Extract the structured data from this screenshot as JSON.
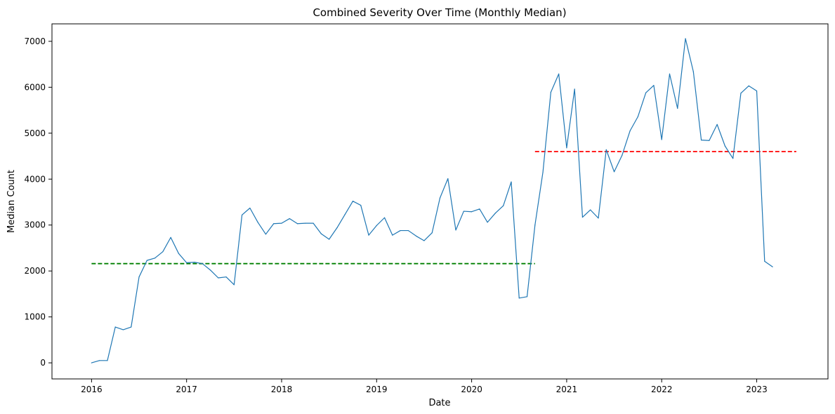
{
  "chart_data": {
    "type": "line",
    "title": "Combined Severity Over Time (Monthly Median)",
    "xlabel": "Date",
    "ylabel": "Median Count",
    "x_ticks": [
      "2016",
      "2017",
      "2018",
      "2019",
      "2020",
      "2021",
      "2022",
      "2023"
    ],
    "y_ticks": [
      0,
      1000,
      2000,
      3000,
      4000,
      5000,
      6000,
      7000
    ],
    "xlim": [
      "2015-08",
      "2023-10"
    ],
    "ylim": [
      -350,
      7380
    ],
    "grid": false,
    "colors": {
      "series": "#1f77b4",
      "before_mean": "#008000",
      "after_mean": "#ff0000"
    },
    "series": [
      {
        "x": [
          "2016-01",
          "2016-02",
          "2016-03",
          "2016-04",
          "2016-05",
          "2016-06",
          "2016-07",
          "2016-08",
          "2016-09",
          "2016-10",
          "2016-11",
          "2016-12",
          "2017-01",
          "2017-02",
          "2017-03",
          "2017-04",
          "2017-05",
          "2017-06",
          "2017-07",
          "2017-08",
          "2017-09",
          "2017-10",
          "2017-11",
          "2017-12",
          "2018-01",
          "2018-02",
          "2018-03",
          "2018-04",
          "2018-05",
          "2018-06",
          "2018-07",
          "2018-08",
          "2018-09",
          "2018-10",
          "2018-11",
          "2018-12",
          "2019-01",
          "2019-02",
          "2019-03",
          "2019-04",
          "2019-05",
          "2019-06",
          "2019-07",
          "2019-08",
          "2019-09",
          "2019-10",
          "2019-11",
          "2019-12",
          "2020-01",
          "2020-02",
          "2020-03",
          "2020-04",
          "2020-05",
          "2020-06",
          "2020-07",
          "2020-08",
          "2020-09",
          "2020-10",
          "2020-11",
          "2020-12",
          "2021-01",
          "2021-02",
          "2021-03",
          "2021-04",
          "2021-05",
          "2021-06",
          "2021-07",
          "2021-08",
          "2021-09",
          "2021-10",
          "2021-11",
          "2021-12",
          "2022-01",
          "2022-02",
          "2022-03",
          "2022-04",
          "2022-05",
          "2022-06",
          "2022-07",
          "2022-08",
          "2022-09",
          "2022-10",
          "2022-11",
          "2022-12",
          "2023-01",
          "2023-02",
          "2023-03"
        ],
        "values": [
          0,
          50,
          50,
          780,
          720,
          780,
          1870,
          2230,
          2280,
          2420,
          2730,
          2380,
          2180,
          2190,
          2160,
          2020,
          1850,
          1870,
          1700,
          3220,
          3370,
          3060,
          2800,
          3030,
          3040,
          3140,
          3030,
          3040,
          3040,
          2810,
          2690,
          2940,
          3230,
          3520,
          3430,
          2780,
          2990,
          3160,
          2780,
          2880,
          2880,
          2760,
          2660,
          2830,
          3590,
          4010,
          2890,
          3300,
          3290,
          3350,
          3060,
          3260,
          3420,
          3940,
          1410,
          1440,
          3000,
          4150,
          5890,
          6290,
          4680,
          5960,
          3170,
          3330,
          3150,
          4640,
          4160,
          4520,
          5050,
          5360,
          5880,
          6040,
          4860,
          6290,
          5540,
          7060,
          6340,
          4850,
          4840,
          5190,
          4720,
          4450,
          5870,
          6030,
          5920,
          2210,
          2090
        ]
      }
    ],
    "reference_lines": [
      {
        "style": "dashed",
        "x_start": "2016-01",
        "x_end": "2020-09",
        "y": 2160
      },
      {
        "style": "dashed",
        "x_start": "2020-09",
        "x_end": "2023-06",
        "y": 4600
      }
    ]
  }
}
